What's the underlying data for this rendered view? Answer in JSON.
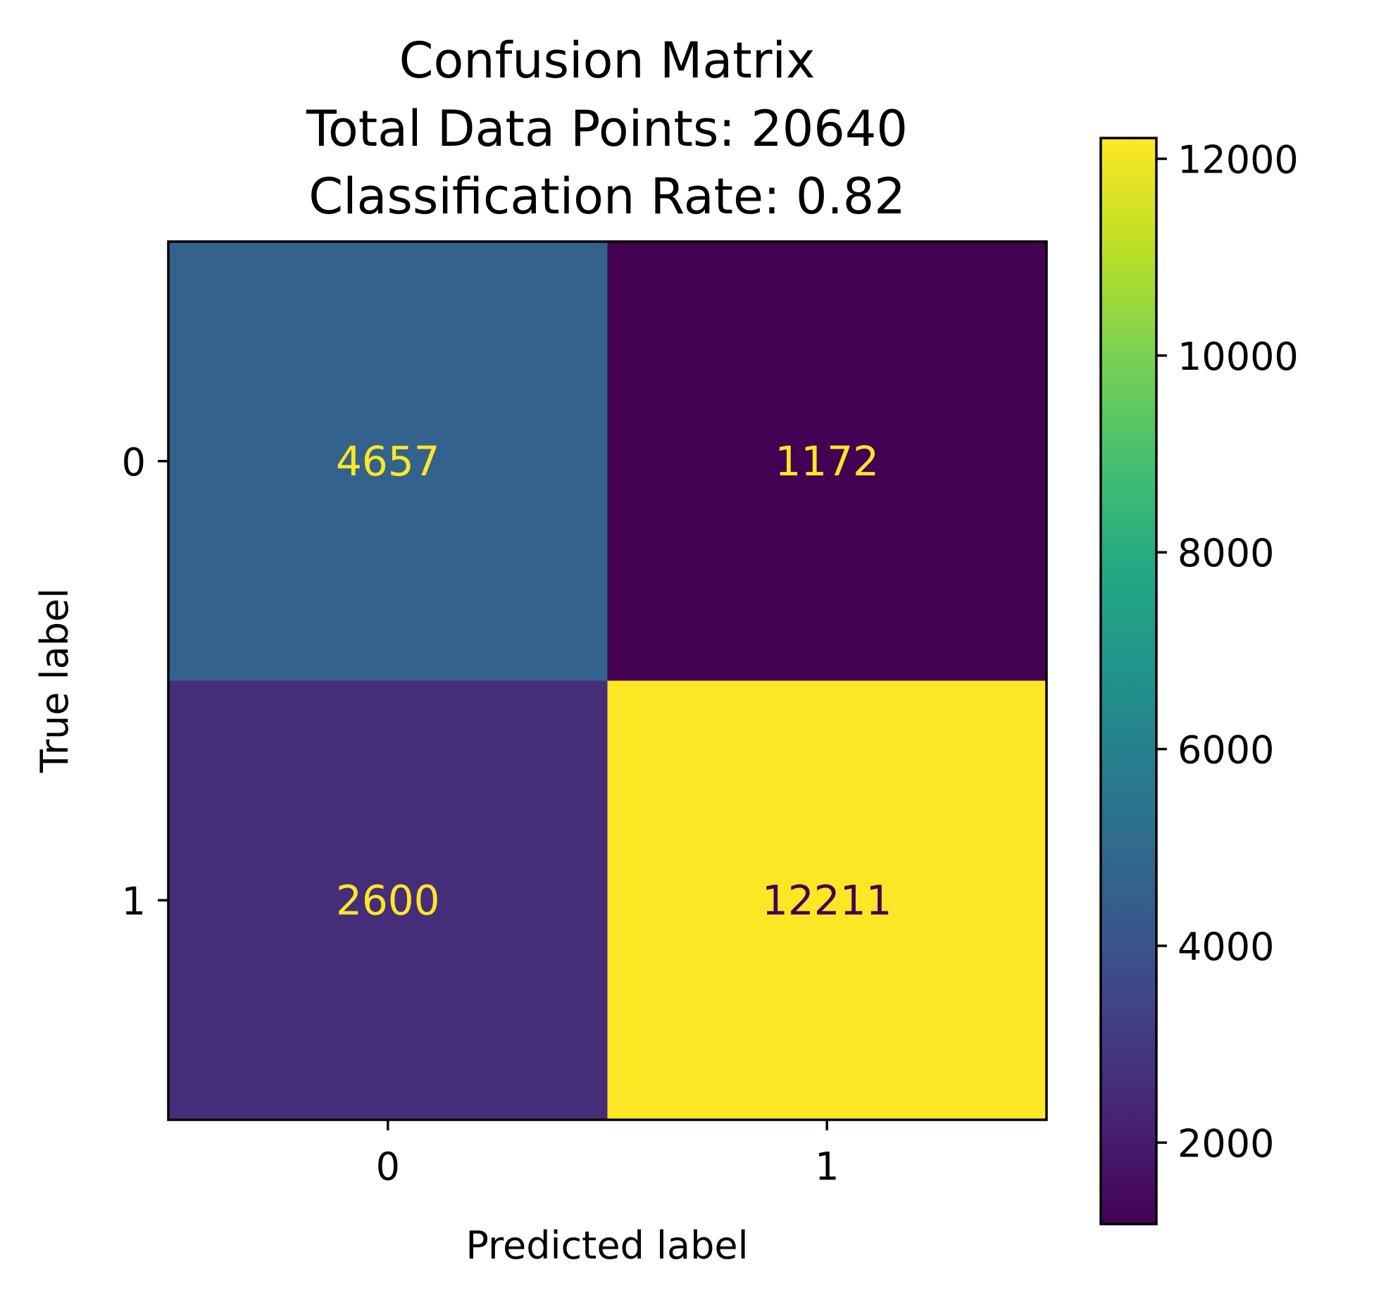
{
  "chart_data": {
    "type": "heatmap",
    "title": [
      "Confusion Matrix",
      "Total Data Points: 20640",
      "Classification Rate: 0.82"
    ],
    "xlabel": "Predicted label",
    "ylabel": "True label",
    "x_categories": [
      "0",
      "1"
    ],
    "y_categories": [
      "0",
      "1"
    ],
    "values": [
      [
        4657,
        1172
      ],
      [
        2600,
        12211
      ]
    ],
    "colormap": "viridis",
    "colorbar": {
      "range": [
        1172,
        12211
      ],
      "ticks": [
        2000,
        4000,
        6000,
        8000,
        10000,
        12000
      ],
      "tick_labels": [
        "2000",
        "4000",
        "6000",
        "8000",
        "10000",
        "12000"
      ]
    },
    "grid": false,
    "annotation_colors": {
      "light": "#fde725",
      "dark": "#440154"
    }
  }
}
